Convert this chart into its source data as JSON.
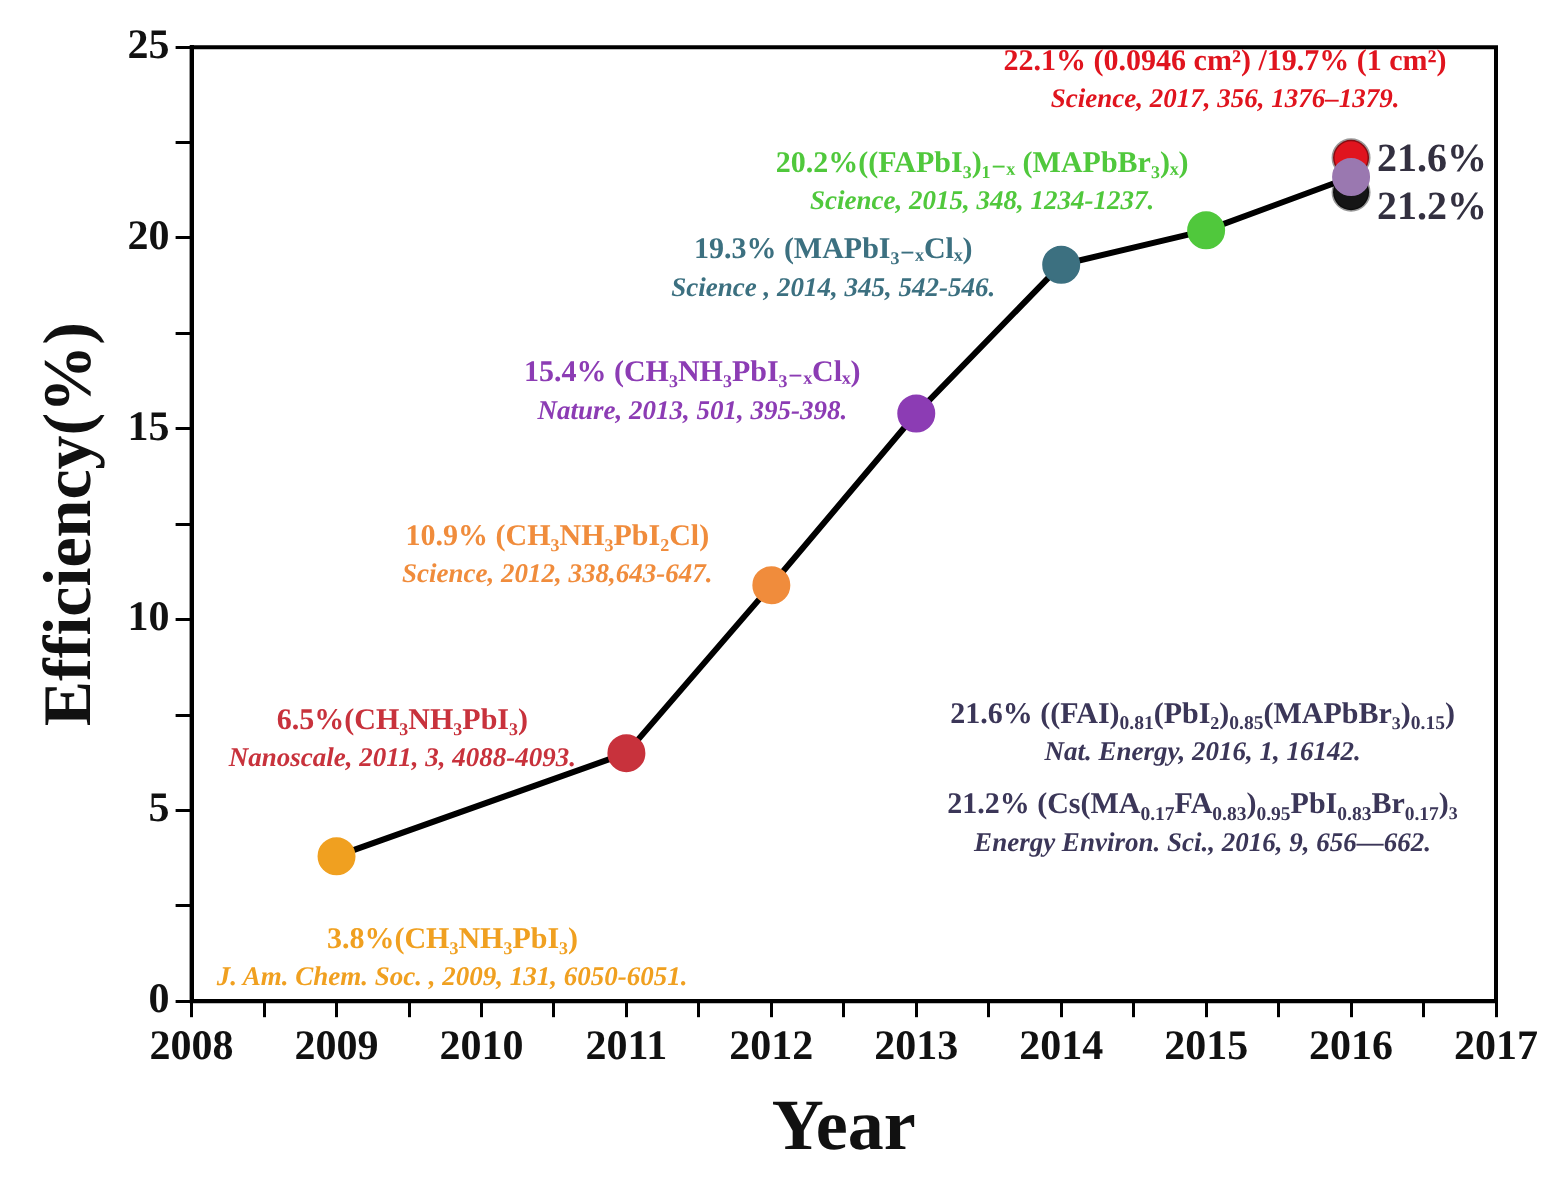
{
  "chart_data": {
    "type": "line",
    "xlabel": "Year",
    "ylabel": "Efficiency(%)",
    "marker": "circle",
    "line_style": "solid",
    "x": [
      2009,
      2011,
      2012,
      2013,
      2014,
      2015,
      2016
    ],
    "xlim": [
      2008,
      2017
    ],
    "xticks": [
      2008,
      {
        "value": 2008.5,
        "label": null
      },
      2009,
      {
        "value": 2009.5,
        "label": null
      },
      2010,
      {
        "value": 2010.5,
        "label": null
      },
      2011,
      {
        "value": 2011.5,
        "label": null
      },
      2012,
      {
        "value": 2012.5,
        "label": null
      },
      2013,
      {
        "value": 2013.5,
        "label": null
      },
      2014,
      {
        "value": 2014.5,
        "label": null
      },
      2015,
      {
        "value": 2015.5,
        "label": null
      },
      2016,
      {
        "value": 2016.5,
        "label": null
      },
      2017
    ],
    "ylim": [
      0,
      25
    ],
    "yticks": [
      0,
      {
        "value": 2.5,
        "label": null
      },
      5,
      {
        "value": 7.5,
        "label": null
      },
      10,
      {
        "value": 12.5,
        "label": null
      },
      15,
      {
        "value": 17.5,
        "label": null
      },
      20,
      {
        "value": 22.5,
        "label": null
      },
      25
    ],
    "series": [
      {
        "color": "#000000",
        "colors": [
          "#f0a020",
          "#c8323c",
          "#f08c3c",
          "#8c3cb4",
          "#3c7080",
          "#50c83c",
          "#9a78b0"
        ],
        "values": [
          3.8,
          6.5,
          10.9,
          15.4,
          19.3,
          20.2,
          21.6
        ],
        "value_labels": [
          null,
          null,
          null,
          null,
          null,
          null,
          "21.6%"
        ]
      },
      {
        "type": "scatter",
        "color": "#e0141e",
        "x": [
          2016
        ],
        "values": [
          22.1
        ]
      },
      {
        "type": "scatter",
        "color": "#151515",
        "x": [
          2016
        ],
        "values": [
          21.2
        ],
        "value_labels": [
          "21.2%"
        ]
      }
    ],
    "annotations": [
      {
        "text": "3.8%(CH₃NH₃PbI₃)\nJ. Am. Chem. Soc. , 2009, 131, 6050-6051.",
        "x": 2009,
        "y": 3.8
      },
      {
        "text": "6.5%(CH₃NH₃PbI₃)\nNanoscale, 2011, 3, 4088-4093.",
        "x": 2011,
        "y": 6.5
      },
      {
        "text": "10.9% (CH₃NH₃PbI₂Cl)\nScience, 2012, 338,643-647.",
        "x": 2012,
        "y": 10.9
      },
      {
        "text": "15.4% (CH₃NH₃PbI₃₋ₓClₓ)\nNature, 2013, 501, 395-398.",
        "x": 2013,
        "y": 15.4
      },
      {
        "text": "19.3% (MAPbI₃₋ₓClₓ)\nScience , 2014, 345, 542-546.",
        "x": 2014,
        "y": 19.3
      },
      {
        "text": "20.2%((FAPbI₃)₁₋ₓ (MAPbBr₃)ₓ)\nScience, 2015, 348, 1234-1237.",
        "x": 2015,
        "y": 20.2
      },
      {
        "text": "22.1% (0.0946 cm²) /19.7% (1 cm²)\nScience, 2017, 356, 1376–1379.",
        "x": 2016,
        "y": 22.1
      },
      "21.6% ((FAI)$_{0.81}$(PbI₂)$_{0.85}$(MAPbBr₃)$_{0.15}$)\nNat. Energy, 2016, 1, 16142.",
      "21.2% (Cs(MA$_{0.17}$FA$_{0.83}$)$_{0.95}$PbI$_{0.83}$Br$_{0.17}$)₃\nEnergy Environ. Sci., 2016, 9, 656—662."
    ]
  }
}
